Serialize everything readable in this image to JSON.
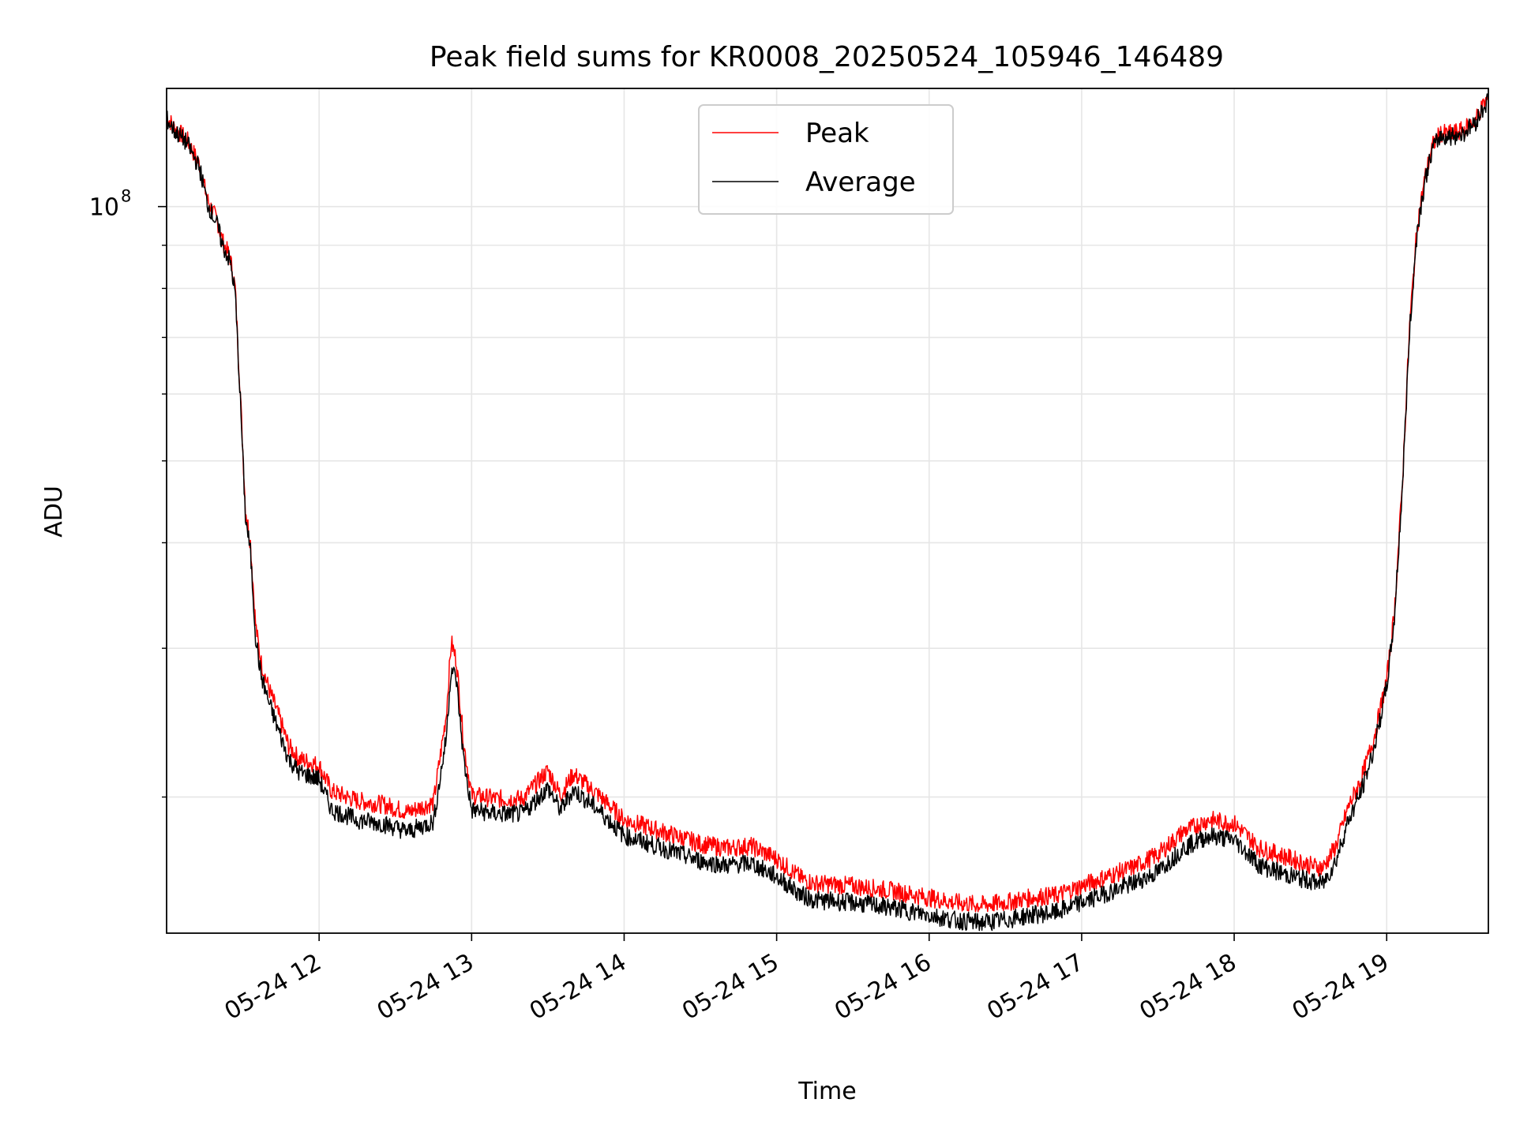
{
  "chart_data": {
    "type": "line",
    "title": "Peak field sums for KR0008_20250524_105946_146489",
    "xlabel": "Time",
    "ylabel": "ADU",
    "yscale": "log",
    "ylim": [
      13800000,
      138000000
    ],
    "xlim": [
      "05-24 11:00",
      "05-24 19:40"
    ],
    "grid": true,
    "legend_position": "top-center",
    "x_ticks": [
      "05-24 12",
      "05-24 13",
      "05-24 14",
      "05-24 15",
      "05-24 16",
      "05-24 17",
      "05-24 18",
      "05-24 19"
    ],
    "y_ticks": [
      {
        "value": 100000000,
        "label": "10",
        "exponent": "8"
      }
    ],
    "y_minor_ticks": [
      20000000,
      30000000,
      40000000,
      50000000,
      60000000,
      70000000,
      80000000,
      90000000
    ],
    "series": [
      {
        "name": "Peak",
        "color": "#ff0000",
        "points": [
          [
            "05-24 11:00",
            128000000
          ],
          [
            "05-24 11:03",
            124000000
          ],
          [
            "05-24 11:08",
            120000000
          ],
          [
            "05-24 11:13",
            112000000
          ],
          [
            "05-24 11:16",
            102000000
          ],
          [
            "05-24 11:20",
            96000000
          ],
          [
            "05-24 11:22",
            91000000
          ],
          [
            "05-24 11:25",
            87000000
          ],
          [
            "05-24 11:27",
            80000000
          ],
          [
            "05-24 11:29",
            60000000
          ],
          [
            "05-24 11:31",
            44000000
          ],
          [
            "05-24 11:33",
            40000000
          ],
          [
            "05-24 11:35",
            32000000
          ],
          [
            "05-24 11:37",
            29000000
          ],
          [
            "05-24 11:40",
            27000000
          ],
          [
            "05-24 11:44",
            25000000
          ],
          [
            "05-24 11:48",
            23000000
          ],
          [
            "05-24 11:52",
            22200000
          ],
          [
            "05-24 11:56",
            22000000
          ],
          [
            "05-24 12:00",
            21800000
          ],
          [
            "05-24 12:05",
            20300000
          ],
          [
            "05-24 12:15",
            19800000
          ],
          [
            "05-24 12:25",
            19600000
          ],
          [
            "05-24 12:35",
            19200000
          ],
          [
            "05-24 12:45",
            19700000
          ],
          [
            "05-24 12:50",
            25000000
          ],
          [
            "05-24 12:52",
            30500000
          ],
          [
            "05-24 12:54",
            29000000
          ],
          [
            "05-24 12:57",
            23000000
          ],
          [
            "05-24 13:00",
            20100000
          ],
          [
            "05-24 13:10",
            19900000
          ],
          [
            "05-24 13:20",
            19900000
          ],
          [
            "05-24 13:30",
            21500000
          ],
          [
            "05-24 13:35",
            20100000
          ],
          [
            "05-24 13:40",
            21300000
          ],
          [
            "05-24 13:50",
            20100000
          ],
          [
            "05-24 14:00",
            18800000
          ],
          [
            "05-24 14:10",
            18400000
          ],
          [
            "05-24 14:20",
            18000000
          ],
          [
            "05-24 14:30",
            17600000
          ],
          [
            "05-24 14:40",
            17400000
          ],
          [
            "05-24 14:50",
            17500000
          ],
          [
            "05-24 15:00",
            16900000
          ],
          [
            "05-24 15:10",
            16000000
          ],
          [
            "05-24 15:15",
            15800000
          ],
          [
            "05-24 15:30",
            15700000
          ],
          [
            "05-24 15:45",
            15500000
          ],
          [
            "05-24 16:00",
            15200000
          ],
          [
            "05-24 16:10",
            15000000
          ],
          [
            "05-24 16:20",
            14900000
          ],
          [
            "05-24 16:30",
            15000000
          ],
          [
            "05-24 16:40",
            15200000
          ],
          [
            "05-24 16:50",
            15300000
          ],
          [
            "05-24 17:00",
            15700000
          ],
          [
            "05-24 17:10",
            16100000
          ],
          [
            "05-24 17:20",
            16500000
          ],
          [
            "05-24 17:30",
            17100000
          ],
          [
            "05-24 17:40",
            18200000
          ],
          [
            "05-24 17:50",
            18800000
          ],
          [
            "05-24 18:00",
            18600000
          ],
          [
            "05-24 18:05",
            18000000
          ],
          [
            "05-24 18:10",
            17400000
          ],
          [
            "05-24 18:20",
            17000000
          ],
          [
            "05-24 18:30",
            16600000
          ],
          [
            "05-24 18:35",
            16500000
          ],
          [
            "05-24 18:40",
            17500000
          ],
          [
            "05-24 18:45",
            19500000
          ],
          [
            "05-24 18:50",
            21000000
          ],
          [
            "05-24 18:55",
            23500000
          ],
          [
            "05-24 19:00",
            27500000
          ],
          [
            "05-24 19:03",
            33000000
          ],
          [
            "05-24 19:06",
            46000000
          ],
          [
            "05-24 19:09",
            72000000
          ],
          [
            "05-24 19:12",
            95000000
          ],
          [
            "05-24 19:15",
            108000000
          ],
          [
            "05-24 19:18",
            118000000
          ],
          [
            "05-24 19:21",
            122000000
          ],
          [
            "05-24 19:25",
            122000000
          ],
          [
            "05-24 19:30",
            123000000
          ],
          [
            "05-24 19:35",
            127000000
          ],
          [
            "05-24 19:40",
            135000000
          ]
        ]
      },
      {
        "name": "Average",
        "color": "#000000",
        "points": [
          [
            "05-24 11:00",
            127000000
          ],
          [
            "05-24 11:03",
            123000000
          ],
          [
            "05-24 11:08",
            119000000
          ],
          [
            "05-24 11:13",
            111000000
          ],
          [
            "05-24 11:16",
            101000000
          ],
          [
            "05-24 11:20",
            95000000
          ],
          [
            "05-24 11:22",
            90000000
          ],
          [
            "05-24 11:25",
            86000000
          ],
          [
            "05-24 11:27",
            79000000
          ],
          [
            "05-24 11:29",
            59000000
          ],
          [
            "05-24 11:31",
            43000000
          ],
          [
            "05-24 11:33",
            39000000
          ],
          [
            "05-24 11:35",
            31000000
          ],
          [
            "05-24 11:37",
            28000000
          ],
          [
            "05-24 11:40",
            26000000
          ],
          [
            "05-24 11:44",
            24000000
          ],
          [
            "05-24 11:48",
            22200000
          ],
          [
            "05-24 11:52",
            21400000
          ],
          [
            "05-24 11:56",
            21200000
          ],
          [
            "05-24 12:00",
            21000000
          ],
          [
            "05-24 12:05",
            19300000
          ],
          [
            "05-24 12:15",
            18800000
          ],
          [
            "05-24 12:25",
            18600000
          ],
          [
            "05-24 12:35",
            18200000
          ],
          [
            "05-24 12:45",
            18700000
          ],
          [
            "05-24 12:50",
            23500000
          ],
          [
            "05-24 12:52",
            28500000
          ],
          [
            "05-24 12:54",
            27500000
          ],
          [
            "05-24 12:57",
            22000000
          ],
          [
            "05-24 13:00",
            19300000
          ],
          [
            "05-24 13:10",
            19100000
          ],
          [
            "05-24 13:20",
            19100000
          ],
          [
            "05-24 13:30",
            20500000
          ],
          [
            "05-24 13:35",
            19300000
          ],
          [
            "05-24 13:40",
            20400000
          ],
          [
            "05-24 13:50",
            19300000
          ],
          [
            "05-24 14:00",
            18000000
          ],
          [
            "05-24 14:10",
            17600000
          ],
          [
            "05-24 14:20",
            17200000
          ],
          [
            "05-24 14:30",
            16800000
          ],
          [
            "05-24 14:40",
            16600000
          ],
          [
            "05-24 14:50",
            16700000
          ],
          [
            "05-24 15:00",
            16100000
          ],
          [
            "05-24 15:10",
            15300000
          ],
          [
            "05-24 15:15",
            15100000
          ],
          [
            "05-24 15:30",
            15000000
          ],
          [
            "05-24 15:45",
            14800000
          ],
          [
            "05-24 16:00",
            14500000
          ],
          [
            "05-24 16:10",
            14300000
          ],
          [
            "05-24 16:20",
            14200000
          ],
          [
            "05-24 16:30",
            14300000
          ],
          [
            "05-24 16:40",
            14500000
          ],
          [
            "05-24 16:50",
            14600000
          ],
          [
            "05-24 17:00",
            15000000
          ],
          [
            "05-24 17:10",
            15400000
          ],
          [
            "05-24 17:20",
            15800000
          ],
          [
            "05-24 17:30",
            16300000
          ],
          [
            "05-24 17:40",
            17400000
          ],
          [
            "05-24 17:50",
            18000000
          ],
          [
            "05-24 18:00",
            17800000
          ],
          [
            "05-24 18:05",
            17200000
          ],
          [
            "05-24 18:10",
            16600000
          ],
          [
            "05-24 18:20",
            16200000
          ],
          [
            "05-24 18:30",
            15900000
          ],
          [
            "05-24 18:35",
            15800000
          ],
          [
            "05-24 18:40",
            16800000
          ],
          [
            "05-24 18:45",
            18800000
          ],
          [
            "05-24 18:50",
            20300000
          ],
          [
            "05-24 18:55",
            22800000
          ],
          [
            "05-24 19:00",
            27000000
          ],
          [
            "05-24 19:03",
            32500000
          ],
          [
            "05-24 19:06",
            45500000
          ],
          [
            "05-24 19:09",
            71000000
          ],
          [
            "05-24 19:12",
            94000000
          ],
          [
            "05-24 19:15",
            107000000
          ],
          [
            "05-24 19:18",
            117000000
          ],
          [
            "05-24 19:21",
            121000000
          ],
          [
            "05-24 19:25",
            121000000
          ],
          [
            "05-24 19:30",
            122000000
          ],
          [
            "05-24 19:35",
            126000000
          ],
          [
            "05-24 19:40",
            134000000
          ]
        ]
      }
    ]
  }
}
